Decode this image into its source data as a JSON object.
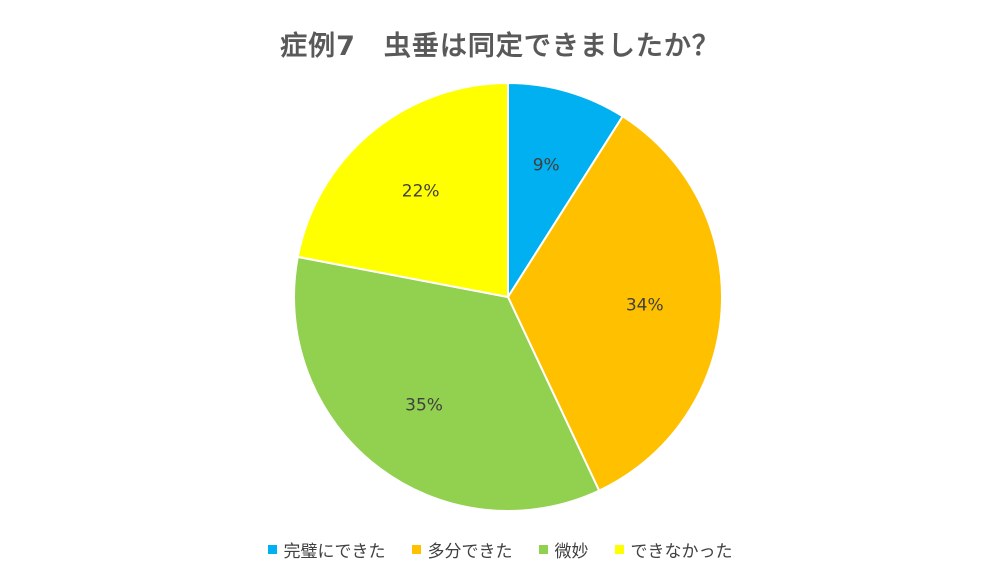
{
  "chart_data": {
    "type": "pie",
    "title": "症例7　虫垂は同定できましたか？",
    "categories": [
      "完璧にできた",
      "多分できた",
      "微妙",
      "できなかった"
    ],
    "values": [
      9,
      34,
      35,
      22
    ],
    "value_labels": [
      "9%",
      "34%",
      "35%",
      "22%"
    ],
    "colors": [
      "#00B0F0",
      "#FFC000",
      "#92D050",
      "#FFFF00"
    ],
    "start_angle_deg": 0,
    "direction": "clockwise",
    "slice_border_color": "#ffffff",
    "legend_position": "bottom"
  }
}
